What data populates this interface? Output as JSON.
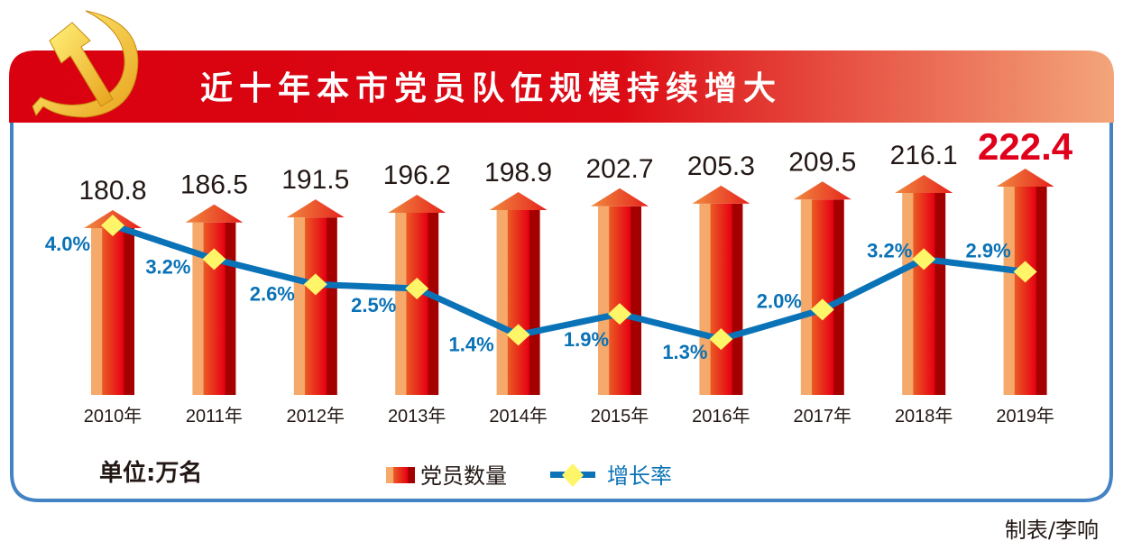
{
  "chart_data": {
    "type": "bar",
    "title": "近十年本市党员队伍规模持续增大",
    "unit_label": "单位:万名",
    "credit": "制表/李响",
    "categories": [
      "2010年",
      "2011年",
      "2012年",
      "2013年",
      "2014年",
      "2015年",
      "2016年",
      "2017年",
      "2018年",
      "2019年"
    ],
    "series": [
      {
        "name": "党员数量",
        "type": "bar",
        "values": [
          180.8,
          186.5,
          191.5,
          196.2,
          198.9,
          202.7,
          205.3,
          209.5,
          216.1,
          222.4
        ],
        "labels": [
          "180.8",
          "186.5",
          "191.5",
          "196.2",
          "198.9",
          "202.7",
          "205.3",
          "209.5",
          "216.1",
          "222.4"
        ]
      },
      {
        "name": "增长率",
        "type": "line",
        "values": [
          4.0,
          3.2,
          2.6,
          2.5,
          1.4,
          1.9,
          1.3,
          2.0,
          3.2,
          2.9
        ],
        "labels": [
          "4.0%",
          "3.2%",
          "2.6%",
          "2.5%",
          "1.4%",
          "1.9%",
          "1.3%",
          "2.0%",
          "3.2%",
          "2.9%"
        ]
      }
    ],
    "legend": {
      "position": "bottom",
      "items": [
        "党员数量",
        "增长率"
      ]
    },
    "grid": false,
    "colors": {
      "header_red": "#d9000f",
      "header_end": "#f3a57a",
      "border": "#4383c4",
      "line": "#0a72b6",
      "marker": "#fff568",
      "highlight": "#e0001b"
    }
  }
}
